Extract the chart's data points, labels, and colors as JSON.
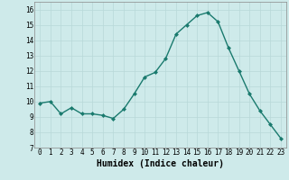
{
  "x": [
    0,
    1,
    2,
    3,
    4,
    5,
    6,
    7,
    8,
    9,
    10,
    11,
    12,
    13,
    14,
    15,
    16,
    17,
    18,
    19,
    20,
    21,
    22,
    23
  ],
  "y": [
    9.9,
    10.0,
    9.2,
    9.6,
    9.2,
    9.2,
    9.1,
    8.9,
    9.5,
    10.5,
    11.6,
    11.9,
    12.8,
    14.4,
    15.0,
    15.6,
    15.8,
    15.2,
    13.5,
    12.0,
    10.5,
    9.4,
    8.5,
    7.6
  ],
  "line_color": "#1a7a6e",
  "marker": "D",
  "marker_size": 2.0,
  "bg_color": "#ceeaea",
  "grid_color": "#b8d8d8",
  "xlabel": "Humidex (Indice chaleur)",
  "ylim": [
    7,
    16.5
  ],
  "yticks": [
    7,
    8,
    9,
    10,
    11,
    12,
    13,
    14,
    15,
    16
  ],
  "xticks": [
    0,
    1,
    2,
    3,
    4,
    5,
    6,
    7,
    8,
    9,
    10,
    11,
    12,
    13,
    14,
    15,
    16,
    17,
    18,
    19,
    20,
    21,
    22,
    23
  ],
  "tick_label_fontsize": 5.5,
  "xlabel_fontsize": 7.0,
  "linewidth": 1.0
}
